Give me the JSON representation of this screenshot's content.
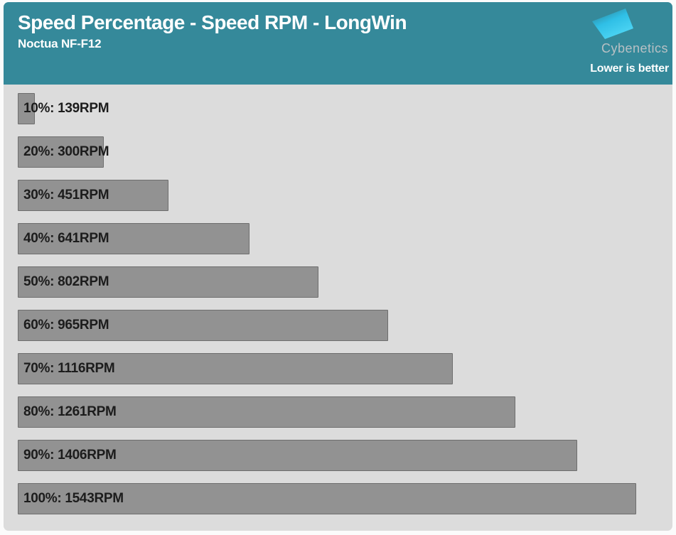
{
  "header": {
    "title": "Speed Percentage - Speed RPM - LongWin",
    "subtitle": "Noctua NF-F12",
    "brand": "Cybenetics",
    "note": "Lower is better",
    "background_color": "#35899a"
  },
  "chart_data": {
    "type": "bar",
    "orientation": "horizontal",
    "title": "Speed Percentage - Speed RPM - LongWin",
    "subtitle": "Noctua NF-F12",
    "annotation": "Lower is better",
    "categories": [
      "10%",
      "20%",
      "30%",
      "40%",
      "50%",
      "60%",
      "70%",
      "80%",
      "90%",
      "100%"
    ],
    "values": [
      139,
      300,
      451,
      641,
      802,
      965,
      1116,
      1261,
      1406,
      1543
    ],
    "unit": "RPM",
    "labels": [
      "10%: 139RPM",
      "20%: 300RPM",
      "30%: 451RPM",
      "40%: 641RPM",
      "50%: 802RPM",
      "60%: 965RPM",
      "70%: 1116RPM",
      "80%: 1261RPM",
      "90%: 1406RPM",
      "100%: 1543RPM"
    ],
    "xlabel": "",
    "ylabel": "",
    "xlim": [
      100,
      1620
    ],
    "grid": false,
    "legend": "none",
    "bar_color": "#929292",
    "bar_border_color": "#6e6e6e",
    "plot_background": "#dcdcdc",
    "label_color": "#1c1c1c"
  }
}
